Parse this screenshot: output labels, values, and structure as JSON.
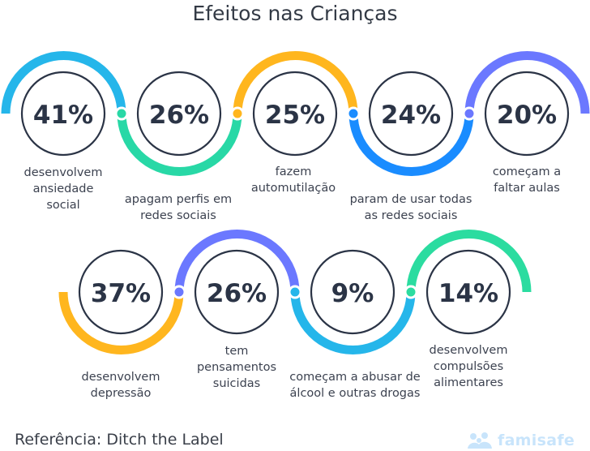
{
  "title": "Efeitos nas Crianças",
  "colors": {
    "blue": "#25b6ea",
    "teal": "#28d8a6",
    "yellow": "#ffb61e",
    "deep_blue": "#1a8cff",
    "violet": "#6b78ff",
    "green": "#2bdca0",
    "circle_outline": "#2b3446"
  },
  "row1": [
    {
      "value": "41%",
      "label": [
        "desenvolvem",
        "ansiedade",
        "social"
      ]
    },
    {
      "value": "26%",
      "label": [
        "apagam perfis em",
        "redes sociais"
      ]
    },
    {
      "value": "25%",
      "label": [
        "fazem",
        "automutilação"
      ]
    },
    {
      "value": "24%",
      "label": [
        "param de usar todas",
        "as redes sociais"
      ]
    },
    {
      "value": "20%",
      "label": [
        "começam a",
        "faltar aulas"
      ]
    }
  ],
  "row2": [
    {
      "value": "37%",
      "label": [
        "desenvolvem",
        "depressão"
      ]
    },
    {
      "value": "26%",
      "label": [
        "tem",
        "pensamentos",
        "suicidas"
      ]
    },
    {
      "value": "9%",
      "label": [
        "começam a abusar de",
        "álcool e outras drogas"
      ]
    },
    {
      "value": "14%",
      "label": [
        "desenvolvem",
        "compulsões",
        "alimentares"
      ]
    }
  ],
  "reference": "Referência: Ditch the Label",
  "logo": {
    "word": "famisafe",
    "icon": "family-icon"
  }
}
